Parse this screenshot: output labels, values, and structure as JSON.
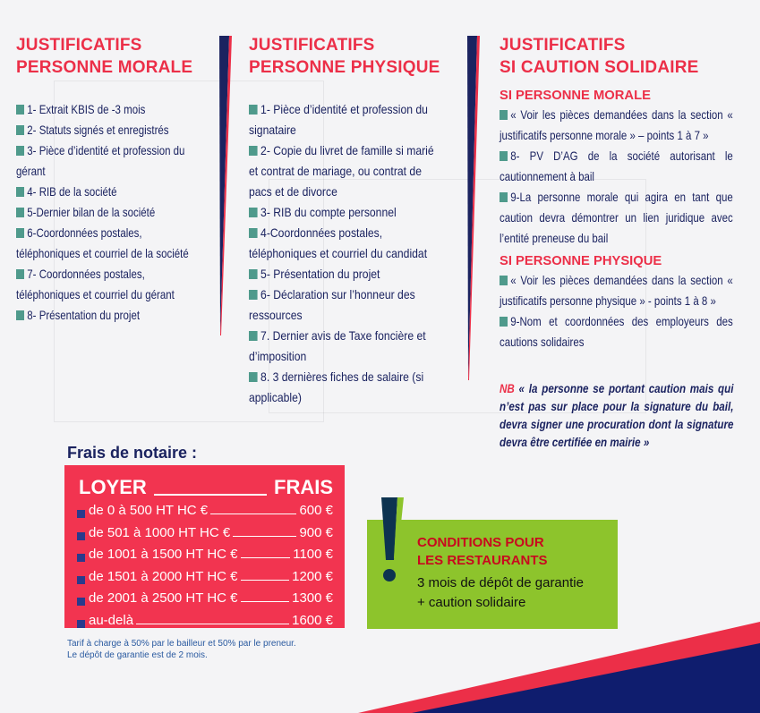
{
  "col1": {
    "title": [
      "JUSTIFICATIFS",
      "PERSONNE MORALE"
    ],
    "items": [
      "1- Extrait KBIS de -3 mois",
      "2- Statuts signés et enregistrés",
      "3- Pièce d’identité et profession du gérant",
      "4- RIB de la société",
      "5-Dernier bilan de la société",
      "6-Coordonnées postales, téléphoniques et courriel de la société",
      "7- Coordonnées postales, téléphoniques et courriel du gérant",
      "8- Présentation du projet"
    ]
  },
  "col2": {
    "title": [
      "JUSTIFICATIFS",
      "PERSONNE PHYSIQUE"
    ],
    "items": [
      "1- Pièce d’identité et profession du signataire",
      "2- Copie du livret de famille si marié et contrat de mariage, ou contrat de pacs et de divorce",
      "3- RIB du compte personnel",
      "4-Coordonnées postales, téléphoniques et courriel du candidat",
      "5- Présentation du projet",
      "6- Déclaration sur l’honneur des ressources",
      "7. Dernier avis de Taxe foncière et d’imposition",
      "8. 3 dernières fiches de salaire (si applicable)"
    ]
  },
  "col3": {
    "title": [
      "JUSTIFICATIFS",
      "SI CAUTION SOLIDAIRE"
    ],
    "morale": {
      "heading": "SI PERSONNE MORALE",
      "items": [
        "« Voir les pièces demandées dans la section « justificatifs personne morale » – points 1 à 7 »",
        "8- PV D’AG de la société autorisant le cautionnement à bail",
        "9-La personne morale qui agira en tant que caution devra démontrer un lien juridique avec l’entité preneuse du bail"
      ]
    },
    "physique": {
      "heading": "SI PERSONNE PHYSIQUE",
      "items": [
        "« Voir les pièces demandées dans la section « justificatifs personne physique » - points 1 à 8 »",
        "9-Nom et coordonnées des employeurs des cautions solidaires"
      ]
    },
    "nb_label": "NB",
    "nb_text": "« la personne se portant caution mais qui n’est pas sur place pour la signature du bail, devra signer une procuration dont la signature devra être certifiée en mairie »"
  },
  "frais": {
    "title": "Frais de notaire :",
    "head_left": "LOYER",
    "head_right": "FRAIS",
    "rows": [
      {
        "range": "de 0 à 500 HT HC €",
        "fee": "600 €"
      },
      {
        "range": "de 501 à 1000 HT HC €",
        "fee": "900 €"
      },
      {
        "range": "de 1001 à 1500 HT HC €",
        "fee": "1100 €"
      },
      {
        "range": "de 1501 à 2000 HT HC €",
        "fee": "1200 €"
      },
      {
        "range": "de 2001 à 2500 HT HC €",
        "fee": "1300 €"
      },
      {
        "range": "au-delà",
        "fee": "1600 €"
      }
    ],
    "note": [
      "Tarif à charge à 50% par le bailleur et 50% par le preneur.",
      "Le dépôt de garantie est de 2 mois."
    ]
  },
  "resto": {
    "title": [
      "CONDITIONS POUR",
      "LES RESTAURANTS"
    ],
    "body": [
      "3 mois de dépôt de garantie",
      "+ caution solidaire"
    ]
  },
  "colors": {
    "red": "#ec2f48",
    "navy": "#1b2360",
    "green": "#8dc42c",
    "teal": "#4f9a8c"
  }
}
